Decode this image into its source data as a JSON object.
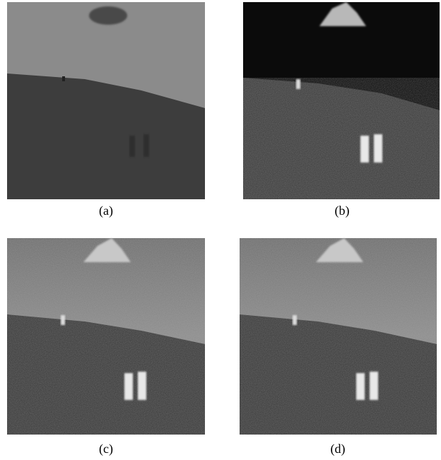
{
  "figure": {
    "captions": [
      "(a)",
      "(b)",
      "(c)",
      "(d)"
    ]
  }
}
